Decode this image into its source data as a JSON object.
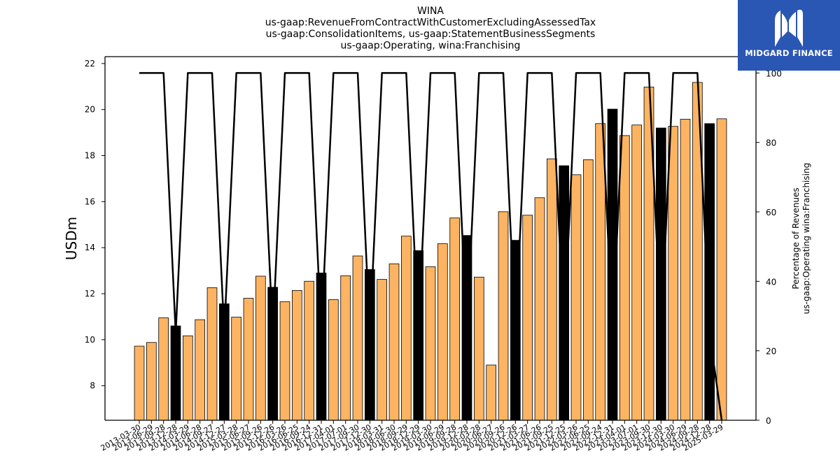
{
  "chart_data": {
    "type": "bar",
    "title_lines": [
      "WINA",
      "us-gaap:RevenueFromContractWithCustomerExcludingAssessedTax",
      "us-gaap:ConsolidationItems, us-gaap:StatementBusinessSegments",
      "us-gaap:Operating, wina:Franchising"
    ],
    "ylabel": "USDm",
    "ylabel_right_lines": [
      "Percentage of Revenues",
      "us-gaap:Operating wina:Franchising"
    ],
    "ylim": [
      6.5,
      22.3
    ],
    "ylim_right": [
      0,
      104.7
    ],
    "yticks": [
      8,
      10,
      12,
      14,
      16,
      18,
      20,
      22
    ],
    "yticks_right": [
      0,
      20,
      40,
      60,
      80,
      100
    ],
    "grid": false,
    "bar_colors": {
      "quarter": "#fdb462",
      "annual": "#000000",
      "edge": "#000000"
    },
    "line_color": "#000000",
    "categories": [
      "2013-03-30",
      "2013-06-29",
      "2013-09-28",
      "2013-12-28",
      "2014-03-29",
      "2014-06-28",
      "2014-09-27",
      "2014-12-27",
      "2015-03-28",
      "2015-06-27",
      "2015-09-26",
      "2015-12-26",
      "2016-03-26",
      "2016-06-25",
      "2016-09-24",
      "2016-12-31",
      "2017-04-01",
      "2017-07-01",
      "2017-09-30",
      "2017-12-30",
      "2018-03-31",
      "2018-06-30",
      "2018-09-29",
      "2018-12-29",
      "2019-03-30",
      "2019-06-29",
      "2019-09-28",
      "2019-12-28",
      "2020-03-28",
      "2020-06-27",
      "2020-09-26",
      "2020-12-26",
      "2021-03-27",
      "2021-06-26",
      "2021-09-25",
      "2021-12-25",
      "2022-03-26",
      "2022-06-25",
      "2022-09-24",
      "2022-12-31",
      "2023-04-01",
      "2023-07-01",
      "2023-09-30",
      "2023-12-30",
      "2024-03-30",
      "2024-06-29",
      "2024-09-28",
      "2024-12-28",
      "2025-03-29"
    ],
    "values": [
      9.72,
      9.88,
      10.95,
      10.6,
      10.17,
      10.87,
      12.26,
      11.56,
      10.98,
      11.8,
      12.76,
      12.28,
      11.65,
      12.14,
      12.54,
      12.9,
      11.74,
      12.78,
      13.64,
      13.05,
      12.62,
      13.3,
      14.5,
      13.87,
      13.17,
      14.17,
      15.29,
      14.53,
      12.72,
      8.9,
      15.56,
      14.32,
      15.41,
      16.17,
      17.86,
      17.56,
      17.17,
      17.82,
      19.39,
      20.02,
      18.87,
      19.33,
      20.98,
      19.2,
      19.27,
      19.58,
      21.18,
      19.39,
      19.6
    ],
    "annual_flags": [
      0,
      0,
      0,
      1,
      0,
      0,
      0,
      1,
      0,
      0,
      0,
      1,
      0,
      0,
      0,
      1,
      0,
      0,
      0,
      1,
      0,
      0,
      0,
      1,
      0,
      0,
      0,
      1,
      0,
      0,
      0,
      1,
      0,
      0,
      0,
      1,
      0,
      0,
      0,
      1,
      0,
      0,
      0,
      1,
      0,
      0,
      0,
      1,
      0
    ],
    "series": [
      {
        "kind": "line",
        "axis": "right",
        "values": [
          100,
          100,
          100,
          25,
          100,
          100,
          100,
          25,
          100,
          100,
          100,
          25,
          100,
          100,
          100,
          25,
          100,
          100,
          100,
          25,
          100,
          100,
          100,
          25,
          100,
          100,
          100,
          25,
          100,
          100,
          100,
          25,
          100,
          100,
          100,
          25,
          100,
          100,
          100,
          25,
          100,
          100,
          100,
          25,
          100,
          100,
          100,
          25,
          0
        ]
      }
    ]
  },
  "logo": {
    "text": "MIDGARD FINANCE",
    "name": "midgard-finance-logo"
  }
}
